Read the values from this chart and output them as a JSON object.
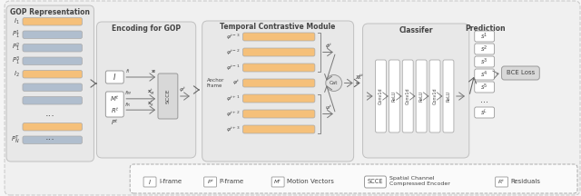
{
  "fig_bg": "#f5f5f5",
  "outer_bg": "#f0f0f0",
  "outer_ec": "#cccccc",
  "panel_bg": "#e8e8e8",
  "panel_ec": "#c0c0c0",
  "gop_bg": "#e8e8e8",
  "legend_bg": "#fafafa",
  "legend_ec": "#aaaaaa",
  "orange": "#f5c07a",
  "blue": "#b0bece",
  "white": "#ffffff",
  "scce_bg": "#d8d8d8",
  "cat_bg": "#e0e0e0",
  "bce_bg": "#d8d8d8",
  "text_color": "#444444",
  "arrow_color": "#777777",
  "gop_label": "GOP Representation",
  "enc_label": "Encoding for GOP",
  "tcm_label": "Temporal Contrastive Module",
  "cls_label": "Classifer",
  "pred_label": "Prediction",
  "gop_row_labels": [
    "$I_1$",
    "$P_1^1$",
    "$P_1^2$",
    "$P_1^3$",
    "$I_2$",
    "",
    "",
    "",
    "",
    "$P_N^T$"
  ],
  "gop_orange_idx": [
    0,
    4,
    9
  ],
  "gop_dots_idx": [
    7
  ],
  "tcm_bar_labels": [
    "$\\varphi^{t-3}$",
    "$\\varphi^{t-2}$",
    "$\\varphi^{t-1}$",
    "$\\varphi^t$",
    "$\\varphi^{t+1}$",
    "$\\varphi^{t+2}$",
    "$\\varphi^{t+3}$"
  ],
  "conv_labels": [
    "Conv1d",
    "ReLU",
    "Conv1d",
    "ReLU",
    "Conv1d",
    "ReLU"
  ],
  "pred_labels": [
    "$s^1$",
    "$s^2$",
    "$s^3$",
    "$s^4$",
    "$s^5$",
    "...",
    "$s^L$"
  ]
}
